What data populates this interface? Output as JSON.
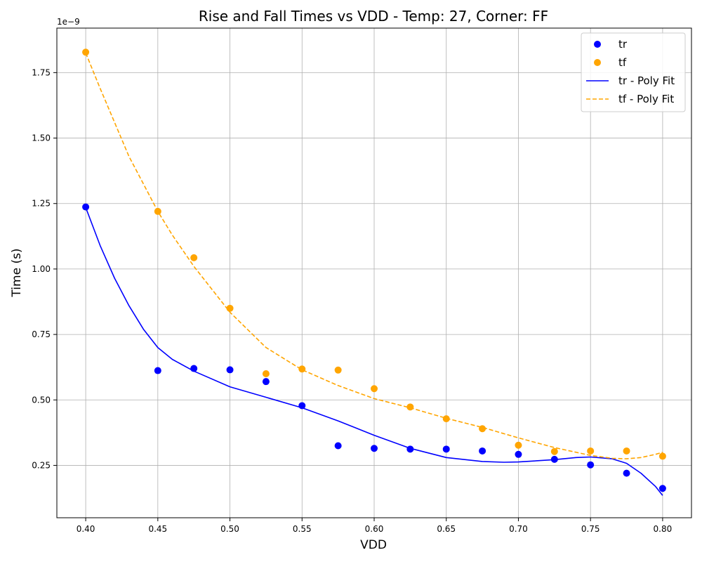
{
  "chart_data": {
    "type": "scatter",
    "title": "Rise and Fall Times vs VDD - Temp: 27, Corner: FF",
    "xlabel": "VDD",
    "ylabel": "Time (s)",
    "y_offset_label": "1e−9",
    "xlim": [
      0.38,
      0.82
    ],
    "ylim": [
      0.05,
      1.92
    ],
    "xticks": [
      0.4,
      0.45,
      0.5,
      0.55,
      0.6,
      0.65,
      0.7,
      0.75,
      0.8
    ],
    "xtick_labels": [
      "0.40",
      "0.45",
      "0.50",
      "0.55",
      "0.60",
      "0.65",
      "0.70",
      "0.75",
      "0.80"
    ],
    "yticks": [
      0.25,
      0.5,
      0.75,
      1.0,
      1.25,
      1.5,
      1.75
    ],
    "ytick_labels": [
      "0.25",
      "0.50",
      "0.75",
      "1.00",
      "1.25",
      "1.50",
      "1.75"
    ],
    "grid": true,
    "legend_position": "top-right",
    "x": [
      0.4,
      0.45,
      0.475,
      0.5,
      0.525,
      0.55,
      0.575,
      0.6,
      0.625,
      0.65,
      0.675,
      0.7,
      0.725,
      0.75,
      0.775,
      0.8
    ],
    "series": [
      {
        "name": "tr",
        "kind": "scatter",
        "color": "#0000ff",
        "values": [
          1.237,
          0.612,
          0.62,
          0.615,
          0.57,
          0.478,
          0.325,
          0.315,
          0.312,
          0.312,
          0.305,
          0.292,
          0.273,
          0.252,
          0.22,
          0.162
        ]
      },
      {
        "name": "tf",
        "kind": "scatter",
        "color": "#ffa500",
        "values": [
          1.828,
          1.22,
          1.043,
          0.85,
          0.6,
          0.618,
          0.614,
          0.543,
          0.473,
          0.428,
          0.39,
          0.327,
          0.303,
          0.305,
          0.305,
          0.285
        ]
      },
      {
        "name": "tr - Poly Fit",
        "kind": "line",
        "style": "solid",
        "color": "#0000ff",
        "x": [
          0.4,
          0.41,
          0.42,
          0.43,
          0.44,
          0.45,
          0.46,
          0.475,
          0.5,
          0.525,
          0.55,
          0.575,
          0.6,
          0.625,
          0.65,
          0.675,
          0.69,
          0.7,
          0.725,
          0.74,
          0.75,
          0.765,
          0.775,
          0.785,
          0.795,
          0.8
        ],
        "values": [
          1.235,
          1.09,
          0.965,
          0.86,
          0.77,
          0.7,
          0.655,
          0.61,
          0.55,
          0.51,
          0.47,
          0.42,
          0.365,
          0.315,
          0.28,
          0.265,
          0.262,
          0.263,
          0.272,
          0.28,
          0.282,
          0.275,
          0.258,
          0.22,
          0.17,
          0.135
        ]
      },
      {
        "name": "tf - Poly Fit",
        "kind": "line",
        "style": "dashed",
        "color": "#ffa500",
        "x": [
          0.4,
          0.41,
          0.42,
          0.43,
          0.44,
          0.45,
          0.46,
          0.475,
          0.5,
          0.525,
          0.55,
          0.575,
          0.6,
          0.625,
          0.65,
          0.675,
          0.7,
          0.725,
          0.75,
          0.765,
          0.775,
          0.785,
          0.795,
          0.8
        ],
        "values": [
          1.825,
          1.69,
          1.56,
          1.43,
          1.325,
          1.22,
          1.13,
          1.01,
          0.835,
          0.7,
          0.615,
          0.555,
          0.505,
          0.47,
          0.43,
          0.395,
          0.355,
          0.318,
          0.288,
          0.277,
          0.275,
          0.28,
          0.292,
          0.3
        ]
      }
    ]
  }
}
